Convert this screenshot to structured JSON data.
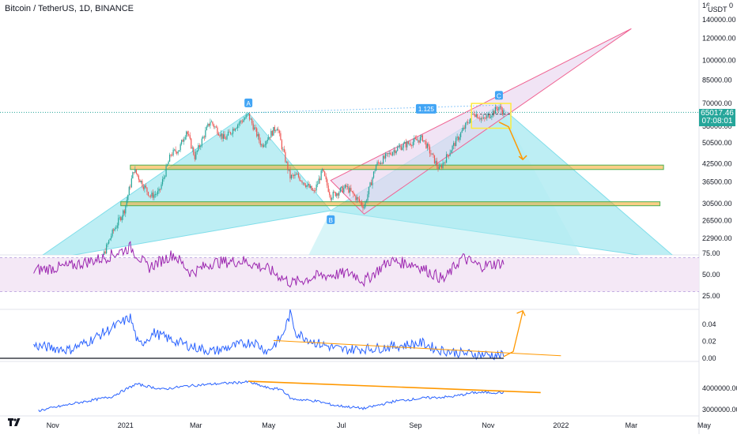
{
  "header": {
    "title": "Bitcoin / TetherUS, 1D, BINANCE",
    "currency": "USDT",
    "last_price": "65017.46",
    "countdown": "07:08:01"
  },
  "colors": {
    "candle_up": "#26a69a",
    "candle_down": "#ef5350",
    "support_fill": "#f5a623",
    "support_border": "#4caf50",
    "wedge_fill": "#e9d5f0",
    "wedge_border": "#f06292",
    "harmonic_fill": "#b2ebf2",
    "rsi_line": "#9c27b0",
    "indicator_line": "#2962ff",
    "trend_orange": "#ff9800",
    "label_blue": "#42a5f5"
  },
  "chart_data": [
    {
      "type": "candlestick",
      "title": "Bitcoin / TetherUS, 1D, BINANCE",
      "y_scale": "log",
      "y_ticks": [
        "140000.00",
        "120000.00",
        "100000.00",
        "85000.00",
        "70000.00",
        "58000.00",
        "50500.00",
        "42500.00",
        "36500.00",
        "30500.00",
        "26500.00",
        "22900.00"
      ],
      "y_tick_values": [
        140000,
        120000,
        100000,
        85000,
        70000,
        58000,
        50500,
        42500,
        36500,
        30500,
        26500,
        22900
      ],
      "x_ticks": [
        "Nov",
        "2021",
        "Mar",
        "May",
        "Jul",
        "Sep",
        "Nov",
        "2022",
        "Mar",
        "May"
      ],
      "x_tick_dates": [
        "2020-11-01",
        "2021-01-01",
        "2021-03-01",
        "2021-05-01",
        "2021-07-01",
        "2021-09-01",
        "2021-11-01",
        "2022-01-01",
        "2022-03-01",
        "2022-05-01"
      ],
      "close_path": [
        [
          "2020-12-01",
          19000
        ],
        [
          "2020-12-10",
          18300
        ],
        [
          "2020-12-20",
          23500
        ],
        [
          "2020-12-31",
          29000
        ],
        [
          "2021-01-08",
          40500
        ],
        [
          "2021-01-15",
          36000
        ],
        [
          "2021-01-22",
          32500
        ],
        [
          "2021-01-29",
          33500
        ],
        [
          "2021-02-08",
          46000
        ],
        [
          "2021-02-15",
          48000
        ],
        [
          "2021-02-21",
          56000
        ],
        [
          "2021-02-28",
          45000
        ],
        [
          "2021-03-13",
          60500
        ],
        [
          "2021-03-25",
          52000
        ],
        [
          "2021-04-03",
          58000
        ],
        [
          "2021-04-14",
          63500
        ],
        [
          "2021-04-25",
          49500
        ],
        [
          "2021-05-08",
          58000
        ],
        [
          "2021-05-12",
          49000
        ],
        [
          "2021-05-19",
          38000
        ],
        [
          "2021-05-25",
          38500
        ],
        [
          "2021-06-08",
          33500
        ],
        [
          "2021-06-15",
          40000
        ],
        [
          "2021-06-22",
          32500
        ],
        [
          "2021-07-05",
          35000
        ],
        [
          "2021-07-20",
          29800
        ],
        [
          "2021-07-30",
          42000
        ],
        [
          "2021-08-14",
          47500
        ],
        [
          "2021-08-22",
          49500
        ],
        [
          "2021-09-07",
          52500
        ],
        [
          "2021-09-21",
          40500
        ],
        [
          "2021-10-01",
          48000
        ],
        [
          "2021-10-20",
          65000
        ],
        [
          "2021-10-28",
          61000
        ],
        [
          "2021-11-10",
          68000
        ],
        [
          "2021-11-14",
          65017.46
        ]
      ],
      "horizontal_zones": [
        {
          "low": 40500,
          "high": 42000
        },
        {
          "low": 30000,
          "high": 31000
        }
      ],
      "harmonic_points": [
        {
          "label": "A",
          "date": "2021-04-14",
          "price": 64800
        },
        {
          "label": "B",
          "date": "2021-06-22",
          "price": 28800
        },
        {
          "label": "C",
          "date": "2021-11-10",
          "price": 69000
        }
      ],
      "ratio_label": "1.125",
      "wedge": {
        "apex": [
          "2022-03-01",
          130000
        ],
        "low": [
          "2021-07-20",
          28000
        ],
        "start": [
          "2021-06-22",
          37000
        ]
      },
      "projection": {
        "from": [
          "2021-11-10",
          60000
        ],
        "to": [
          "2021-11-30",
          44000
        ]
      }
    },
    {
      "type": "line",
      "name": "RSI",
      "y_ticks": [
        "75.00",
        "50.00",
        "25.00"
      ],
      "y_tick_values": [
        75,
        50,
        25
      ],
      "band": [
        30,
        70
      ],
      "x": [
        "2020-10-16",
        "2020-11-15",
        "2020-12-15",
        "2021-01-05",
        "2021-01-20",
        "2021-02-10",
        "2021-02-25",
        "2021-03-15",
        "2021-04-10",
        "2021-05-01",
        "2021-05-20",
        "2021-06-10",
        "2021-07-10",
        "2021-07-20",
        "2021-08-10",
        "2021-09-01",
        "2021-09-25",
        "2021-10-10",
        "2021-10-25",
        "2021-11-14"
      ],
      "y": [
        55,
        60,
        70,
        82,
        58,
        74,
        52,
        64,
        66,
        56,
        40,
        48,
        52,
        42,
        66,
        62,
        44,
        70,
        60,
        64
      ]
    },
    {
      "type": "line",
      "name": "Volatility",
      "y_ticks": [
        "0.04",
        "0.02",
        "0.00"
      ],
      "y_tick_values": [
        0.04,
        0.02,
        0
      ],
      "x": [
        "2020-10-16",
        "2020-11-15",
        "2020-12-01",
        "2021-01-05",
        "2021-01-12",
        "2021-01-25",
        "2021-02-08",
        "2021-02-25",
        "2021-03-15",
        "2021-04-18",
        "2021-04-30",
        "2021-05-12",
        "2021-05-19",
        "2021-05-24",
        "2021-06-10",
        "2021-07-01",
        "2021-08-01",
        "2021-09-07",
        "2021-09-20",
        "2021-10-10",
        "2021-11-14"
      ],
      "y": [
        0.015,
        0.01,
        0.02,
        0.048,
        0.015,
        0.03,
        0.022,
        0.014,
        0.008,
        0.02,
        0.008,
        0.025,
        0.052,
        0.03,
        0.018,
        0.01,
        0.012,
        0.018,
        0.01,
        0.006,
        0.003
      ]
    },
    {
      "type": "line",
      "name": "Indicator",
      "y_ticks": [
        "4000000.00",
        "3000000.00"
      ],
      "y_tick_values": [
        4000000,
        3000000
      ],
      "x": [
        "2020-10-20",
        "2020-11-20",
        "2020-12-20",
        "2021-01-10",
        "2021-02-01",
        "2021-02-20",
        "2021-03-15",
        "2021-04-14",
        "2021-05-01",
        "2021-05-12",
        "2021-05-20",
        "2021-06-10",
        "2021-06-25",
        "2021-07-20",
        "2021-08-15",
        "2021-09-10",
        "2021-10-01",
        "2021-10-20",
        "2021-11-14"
      ],
      "y": [
        2950000,
        3300000,
        3600000,
        4200000,
        3950000,
        4100000,
        4200000,
        4300000,
        4000000,
        3950000,
        3500000,
        3400000,
        3200000,
        3050000,
        3400000,
        3550000,
        3600000,
        3800000,
        3800000
      ]
    }
  ]
}
